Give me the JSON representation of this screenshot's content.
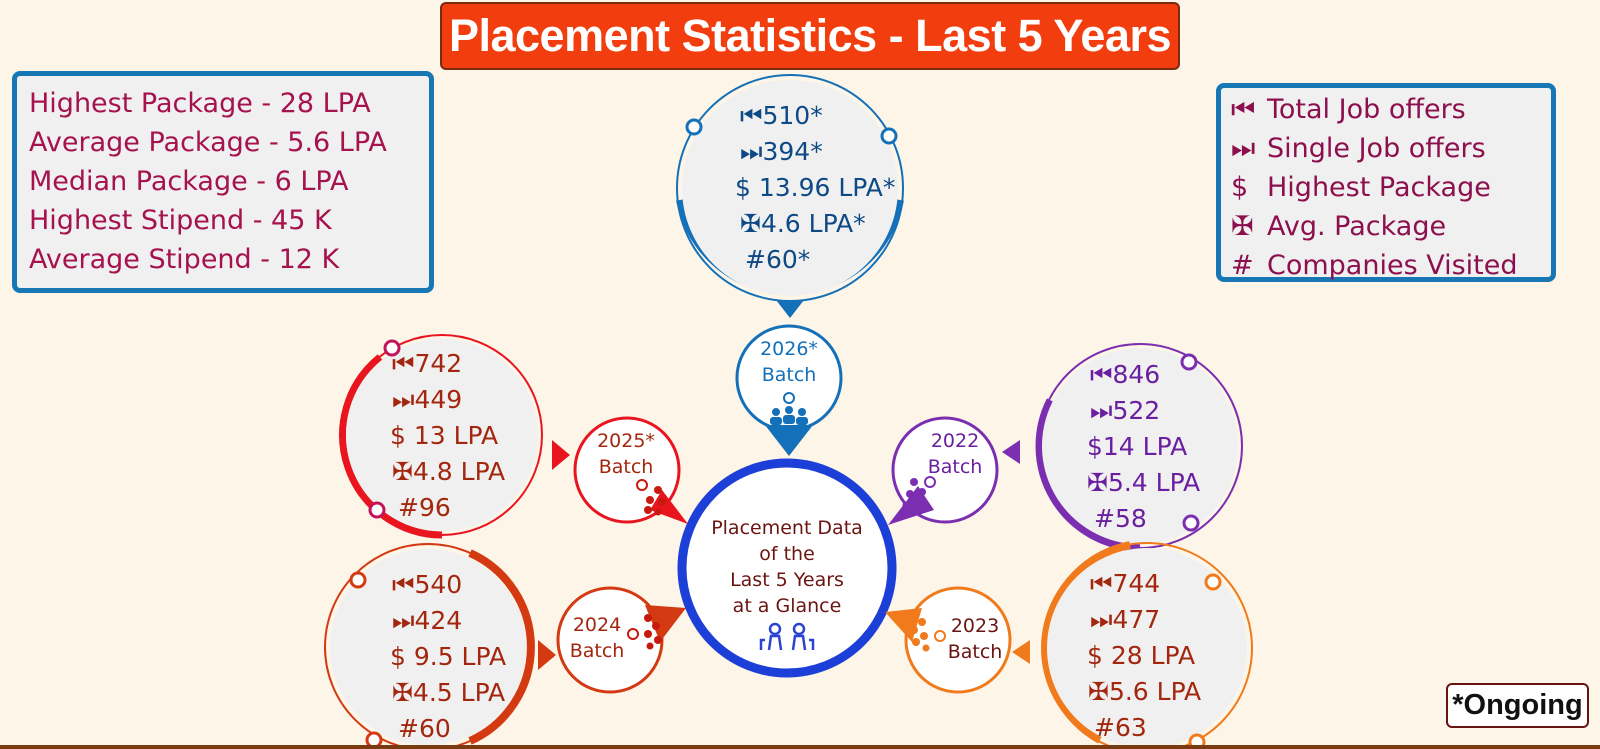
{
  "title": "Placement Statistics - Last 5 Years",
  "summary": [
    "Highest Package  - 28 LPA",
    "Average Package - 5.6 LPA",
    "Median Package - 6 LPA",
    "Highest Stipend  - 45 K",
    "Average Stipend - 12 K"
  ],
  "legend": [
    {
      "symbol": "⏮",
      "label": "Total Job offers"
    },
    {
      "symbol": "⏭",
      "label": "Single Job offers"
    },
    {
      "symbol": "$",
      "label": "Highest Package"
    },
    {
      "symbol": "✠",
      "label": "Avg. Package"
    },
    {
      "symbol": "#",
      "label": "Companies Visited"
    }
  ],
  "center": {
    "lines": [
      "Placement Data",
      "of the",
      "Last 5 Years",
      "at a Glance"
    ],
    "icon": "people-icon"
  },
  "batches": {
    "b2026": {
      "year": "2026*",
      "label": "Batch",
      "color": "#1470b8",
      "lines": [
        "⏮510*",
        "⏭394*",
        "$ 13.96 LPA*",
        "✠4.6 LPA*",
        "#60*"
      ]
    },
    "b2025": {
      "year": "2025*",
      "label": "Batch",
      "color": "#e8141e",
      "lines": [
        "⏮742",
        "⏭449",
        "$ 13 LPA",
        "✠4.8 LPA",
        "#96"
      ]
    },
    "b2024": {
      "year": "2024",
      "label": "Batch",
      "color": "#d43a12",
      "lines": [
        "⏮540",
        "⏭424",
        "$ 9.5 LPA",
        "✠4.5 LPA",
        "#60"
      ]
    },
    "b2023": {
      "year": "2023",
      "label": "Batch",
      "color": "#f07a1c",
      "lines": [
        "⏮744",
        "⏭477",
        "$ 28 LPA",
        "✠5.6 LPA",
        "#63"
      ]
    },
    "b2022": {
      "year": "2022",
      "label": "Batch",
      "color": "#7b2fb0",
      "lines": [
        "⏮846",
        "⏭522",
        "$14 LPA",
        "✠5.4 LPA",
        "#58"
      ]
    }
  },
  "footnote": "*Ongoing"
}
